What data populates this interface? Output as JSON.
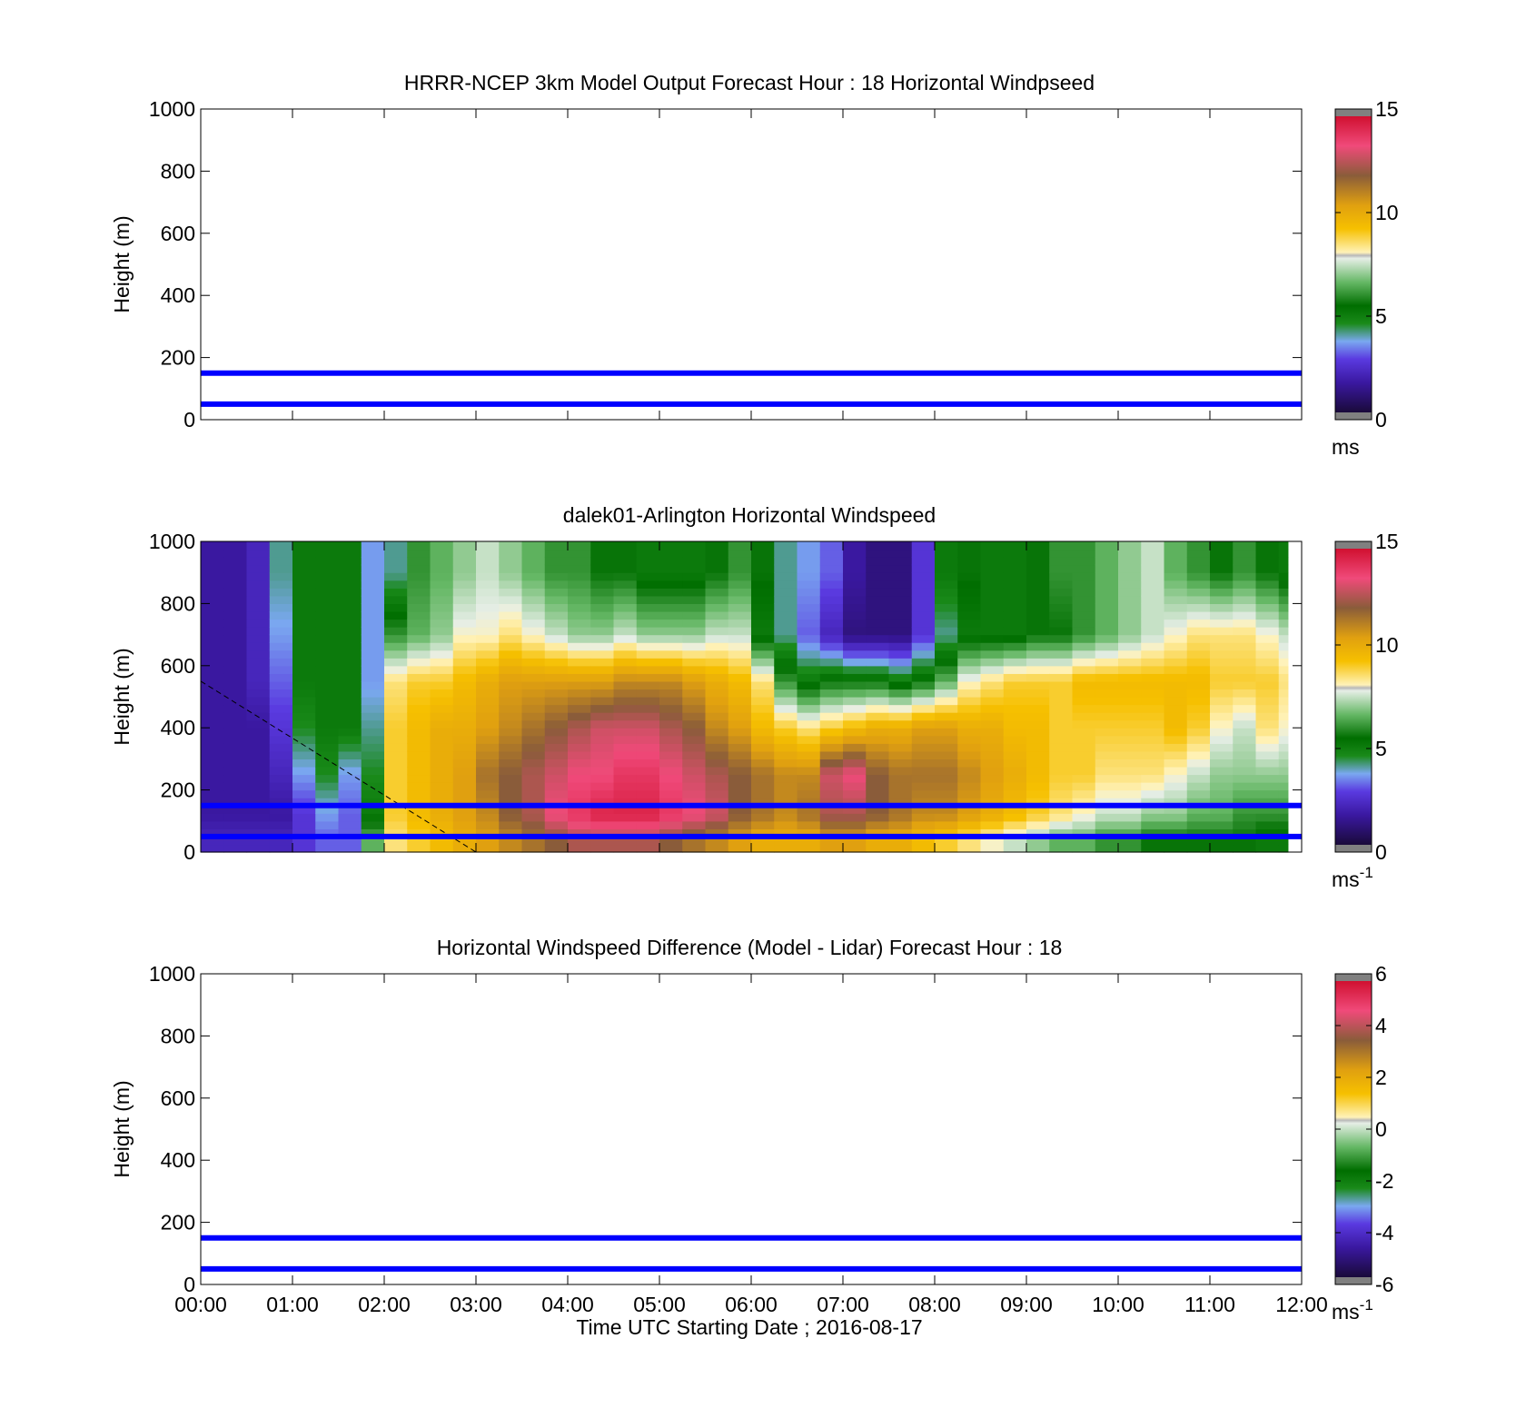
{
  "figure": {
    "xlabel": "Time UTC  Starting Date ; 2016-08-17",
    "x_ticks": [
      "00:00",
      "01:00",
      "02:00",
      "03:00",
      "04:00",
      "05:00",
      "06:00",
      "07:00",
      "08:00",
      "09:00",
      "10:00",
      "11:00",
      "12:00"
    ]
  },
  "chart_data": [
    {
      "type": "heatmap",
      "title": "HRRR-NCEP 3km Model Output   Forecast Hour : 18 Horizontal Windpseed",
      "ylabel": "Height (m)",
      "xlim": [
        "00:00",
        "12:00"
      ],
      "ylim": [
        0,
        1000
      ],
      "y_ticks": [
        0,
        200,
        400,
        600,
        800,
        1000
      ],
      "reference_lines_m": [
        50,
        150
      ],
      "reference_line_color": "#0000ff",
      "colorbar": {
        "min": 0,
        "max": 15,
        "ticks": [
          0,
          5,
          10,
          15
        ],
        "unit": "ms"
      },
      "values": []
    },
    {
      "type": "heatmap",
      "title": "dalek01-Arlington  Horizontal Windspeed",
      "ylabel": "Height (m)",
      "xlim": [
        "00:00",
        "12:00"
      ],
      "ylim": [
        0,
        1000
      ],
      "y_ticks": [
        0,
        200,
        400,
        600,
        800,
        1000
      ],
      "reference_lines_m": [
        50,
        150
      ],
      "reference_line_color": "#0000ff",
      "colorbar": {
        "min": 0,
        "max": 15,
        "ticks": [
          0,
          5,
          10,
          15
        ],
        "unit": "ms",
        "unit_exp": "-1"
      },
      "description_rows_m": [
        900,
        700,
        550,
        400,
        250,
        120,
        40
      ],
      "x_hours": [
        0.0,
        0.25,
        0.5,
        0.75,
        1.0,
        1.25,
        1.5,
        1.75,
        2.0,
        2.25,
        2.5,
        2.75,
        3.0,
        3.25,
        3.5,
        3.75,
        4.0,
        4.25,
        4.5,
        4.75,
        5.0,
        5.25,
        5.5,
        5.75,
        6.0,
        6.25,
        6.5,
        6.75,
        7.0,
        7.25,
        7.5,
        7.75,
        8.0,
        8.25,
        8.5,
        8.75,
        9.0,
        9.25,
        9.5,
        9.75,
        10.0,
        10.25,
        10.5,
        10.75,
        11.0,
        11.25,
        11.5,
        11.75
      ],
      "values_ms": [
        [
          1.5,
          1.5,
          2.0,
          4.0,
          5.0,
          5.0,
          5.0,
          3.5,
          4.0,
          6.0,
          6.5,
          7.0,
          7.5,
          7.0,
          6.5,
          6.0,
          6.0,
          5.5,
          5.5,
          5.0,
          5.0,
          5.0,
          5.5,
          6.0,
          5.5,
          4.0,
          3.5,
          3.0,
          1.5,
          1.0,
          1.0,
          2.5,
          5.0,
          5.5,
          5.0,
          5.0,
          5.5,
          6.0,
          6.0,
          6.5,
          7.0,
          7.5,
          6.5,
          6.0,
          5.5,
          6.0,
          5.5,
          5.0
        ],
        [
          1.5,
          1.5,
          2.0,
          3.5,
          5.0,
          5.0,
          5.0,
          3.5,
          6.0,
          6.5,
          7.0,
          8.0,
          8.0,
          8.5,
          8.0,
          7.5,
          7.0,
          7.0,
          7.5,
          7.0,
          7.0,
          7.0,
          7.5,
          7.5,
          5.0,
          4.0,
          3.0,
          2.0,
          1.0,
          1.0,
          1.0,
          2.5,
          4.0,
          5.0,
          5.0,
          5.0,
          5.5,
          5.5,
          6.0,
          6.5,
          7.0,
          7.5,
          8.0,
          8.5,
          8.5,
          8.5,
          8.0,
          7.5
        ],
        [
          1.5,
          1.5,
          2.0,
          3.0,
          5.0,
          5.0,
          5.0,
          3.5,
          8.5,
          9.0,
          9.0,
          9.5,
          10.0,
          10.5,
          10.5,
          10.5,
          10.5,
          10.5,
          11.0,
          11.0,
          11.0,
          10.5,
          10.0,
          9.5,
          8.5,
          6.0,
          5.0,
          5.5,
          5.5,
          5.5,
          5.0,
          5.5,
          6.5,
          8.0,
          8.5,
          9.0,
          9.0,
          9.0,
          9.5,
          9.5,
          9.5,
          9.5,
          9.5,
          9.5,
          9.0,
          9.0,
          9.0,
          8.5
        ],
        [
          1.5,
          1.5,
          1.5,
          2.5,
          4.5,
          5.0,
          5.0,
          4.0,
          9.0,
          9.5,
          10.0,
          10.0,
          10.5,
          11.0,
          11.5,
          12.0,
          12.5,
          13.0,
          13.0,
          13.0,
          12.5,
          12.0,
          11.0,
          10.5,
          9.5,
          9.0,
          8.5,
          9.0,
          9.5,
          10.0,
          10.0,
          10.5,
          10.5,
          10.0,
          10.0,
          9.5,
          9.5,
          9.0,
          9.0,
          9.0,
          9.0,
          9.0,
          9.5,
          9.0,
          8.0,
          7.5,
          8.5,
          8.0
        ],
        [
          1.5,
          1.5,
          1.5,
          2.0,
          3.5,
          4.5,
          3.5,
          4.5,
          9.0,
          9.5,
          10.0,
          10.5,
          11.5,
          12.0,
          12.5,
          13.0,
          13.5,
          13.5,
          14.0,
          14.0,
          13.5,
          13.0,
          12.5,
          12.0,
          11.5,
          11.0,
          11.0,
          13.0,
          13.5,
          12.0,
          11.5,
          11.5,
          11.5,
          11.0,
          10.5,
          10.0,
          9.5,
          9.0,
          9.0,
          8.5,
          8.5,
          8.5,
          8.0,
          7.5,
          7.0,
          7.0,
          7.0,
          7.0
        ],
        [
          1.5,
          1.5,
          1.5,
          1.5,
          2.5,
          3.5,
          3.0,
          5.0,
          9.0,
          9.5,
          10.0,
          10.5,
          11.0,
          12.0,
          12.5,
          13.5,
          14.0,
          14.5,
          14.5,
          14.5,
          14.0,
          13.5,
          13.0,
          12.0,
          11.5,
          11.0,
          11.5,
          12.5,
          12.5,
          12.0,
          11.5,
          11.0,
          11.0,
          10.5,
          10.0,
          9.5,
          9.0,
          8.5,
          8.0,
          7.5,
          7.5,
          7.0,
          7.0,
          6.5,
          6.5,
          6.0,
          6.0,
          6.0
        ],
        [
          2.0,
          2.0,
          2.0,
          2.0,
          2.5,
          3.0,
          3.0,
          6.5,
          8.5,
          9.0,
          9.5,
          10.0,
          10.5,
          11.0,
          11.5,
          12.0,
          12.5,
          12.5,
          12.5,
          12.5,
          12.0,
          11.5,
          11.0,
          10.5,
          10.0,
          10.0,
          10.0,
          10.5,
          10.5,
          10.0,
          10.0,
          9.5,
          9.0,
          8.5,
          8.0,
          7.5,
          7.0,
          6.5,
          6.5,
          6.0,
          6.0,
          5.5,
          5.5,
          5.5,
          5.5,
          5.5,
          5.0,
          5.0
        ]
      ]
    },
    {
      "type": "heatmap",
      "title": "Horizontal Windspeed Difference (Model - Lidar) Forecast Hour : 18",
      "ylabel": "Height (m)",
      "xlim": [
        "00:00",
        "12:00"
      ],
      "ylim": [
        0,
        1000
      ],
      "y_ticks": [
        0,
        200,
        400,
        600,
        800,
        1000
      ],
      "reference_lines_m": [
        50,
        150
      ],
      "reference_line_color": "#0000ff",
      "colorbar": {
        "min": -6,
        "max": 6,
        "ticks": [
          -6,
          -4,
          -2,
          0,
          2,
          4,
          6
        ],
        "unit": "ms",
        "unit_exp": "-1"
      },
      "values": []
    }
  ]
}
